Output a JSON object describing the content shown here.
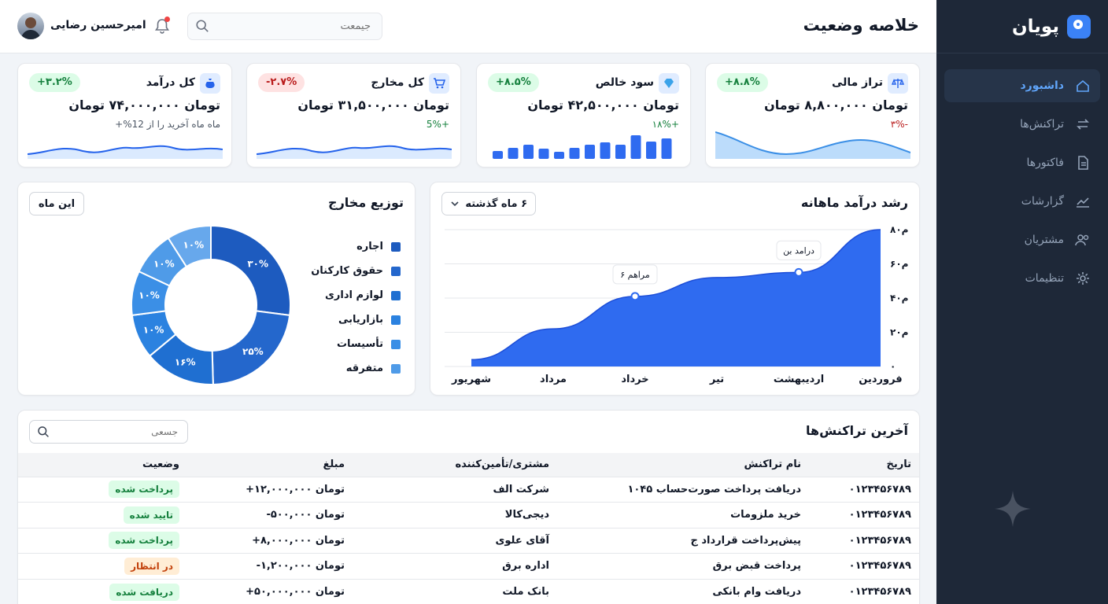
{
  "brand": {
    "name": "پویان"
  },
  "sidebar": {
    "items": [
      {
        "label": "داشبورد",
        "icon": "home-icon",
        "active": true
      },
      {
        "label": "تراکنش‌ها",
        "icon": "arrows-swap-icon",
        "active": false
      },
      {
        "label": "فاکتورها",
        "icon": "document-icon",
        "active": false
      },
      {
        "label": "گزارشات",
        "icon": "chart-line-icon",
        "active": false
      },
      {
        "label": "مشتریان",
        "icon": "users-icon",
        "active": false
      },
      {
        "label": "تنظیمات",
        "icon": "gear-icon",
        "active": false
      }
    ]
  },
  "header": {
    "title": "خلاصه وضعیت",
    "search_placeholder": "جیمعت",
    "user_name": "امیرحسین رضایی"
  },
  "kpis": [
    {
      "title": "تراز مالی",
      "icon": "scale-icon",
      "value": "تومان ۸,۸۰۰,۰۰۰ تومان",
      "badge": "+۸.۸%",
      "badge_dir": "up",
      "sub": "-۳%",
      "sub_color": "#b91c1c",
      "spark": "area"
    },
    {
      "title": "سود خالص",
      "icon": "diamond-icon",
      "value": "تومان ۴۲,۵۰۰,۰۰۰ تومان",
      "badge": "+۸.۵%",
      "badge_dir": "up",
      "sub": "+۱۸%",
      "sub_color": "#15803d",
      "spark": "bars"
    },
    {
      "title": "کل مخارج",
      "icon": "cart-icon",
      "value": "تومان ۳۱,۵۰۰,۰۰۰ تومان",
      "badge": "-۲.۷%",
      "badge_dir": "down",
      "sub": "+5%",
      "sub_color": "#15803d",
      "spark": "line"
    },
    {
      "title": "کل درآمد",
      "icon": "money-bag-icon",
      "value": "تومان ۷۴,۰۰۰,۰۰۰ تومان",
      "badge": "+۳.۲%",
      "badge_dir": "up",
      "sub": "ماه ماه آخرید را از 12%+",
      "sub_color": "#4b5563",
      "spark": "line"
    }
  ],
  "revenue": {
    "title": "رشد درآمد ماهانه",
    "period": "۶ ماه گذشته"
  },
  "expenses": {
    "title": "توزیع مخارج",
    "period_button": "این ماه"
  },
  "chart_data": [
    {
      "type": "area",
      "title": "رشد درآمد ماهانه",
      "categories": [
        "فروردین",
        "اردیبهشت",
        "تیر",
        "خرداد",
        "مرداد",
        "شهریور"
      ],
      "values": [
        80,
        55,
        52,
        41,
        22,
        4
      ],
      "y_tick_labels": [
        "۰",
        "۲۰م",
        "۴۰م",
        "۶۰م",
        "۸۰م"
      ],
      "y_tick_values": [
        0,
        20,
        40,
        60,
        80
      ],
      "ylim": [
        0,
        80
      ],
      "color": "#2f6bf0",
      "annotations": [
        {
          "label": "درامد بن",
          "category": "اردیبهشت"
        },
        {
          "label": "۶ مراهم",
          "category": "خرداد"
        }
      ],
      "grid": true
    },
    {
      "type": "pie",
      "title": "توزیع مخارج",
      "slices": [
        {
          "label": "اجاره",
          "value": 30,
          "text": "۳۰%",
          "color": "#1d5bbf"
        },
        {
          "label": "حقوق کارکنان",
          "value": 25,
          "text": "۲۵%",
          "color": "#2467cc"
        },
        {
          "label": "لوازم اداری",
          "value": 16,
          "text": "۱۶%",
          "color": "#1f6fd1"
        },
        {
          "label": "بازاریابی",
          "value": 10,
          "text": "۱۰%",
          "color": "#2b82e0"
        },
        {
          "label": "تأسیسات",
          "value": 10,
          "text": "۱۰%",
          "color": "#3b8fe6"
        },
        {
          "label": "متفرقه",
          "value": 10,
          "text": "۱۰%",
          "color": "#4f9be8"
        },
        {
          "label": "",
          "value": 10,
          "text": "۱۰%",
          "color": "#67a8ec"
        }
      ],
      "donut": true
    }
  ],
  "transactions": {
    "title": "آخرین تراکنش‌ها",
    "search_placeholder": "جسعی",
    "columns": [
      "تاریخ",
      "نام تراکنش",
      "مشتری/تأمین‌کننده",
      "مبلغ",
      "وضعیت"
    ],
    "rows": [
      {
        "date": "۰۱۲۳۴۵۶۷۸۹",
        "name": "دریافت پرداخت صورت‌حساب ۱۰۴۵",
        "party": "شرکت الف",
        "amount": "تومان ۱۲,۰۰۰,۰۰۰+",
        "amount_sign": "pos",
        "status": "پرداخت شده",
        "status_type": "paid"
      },
      {
        "date": "۰۱۲۳۴۵۶۷۸۹",
        "name": "خرید ملزومات",
        "party": "دیجی‌کالا",
        "amount": "تومان ۵۰۰,۰۰۰-",
        "amount_sign": "neg",
        "status": "تایید شده",
        "status_type": "paid"
      },
      {
        "date": "۰۱۲۳۴۵۶۷۸۹",
        "name": "پیش‌پرداخت قرارداد ج",
        "party": "آقای علوی",
        "amount": "تومان ۸,۰۰۰,۰۰۰+",
        "amount_sign": "pos",
        "status": "پرداخت شده",
        "status_type": "paid"
      },
      {
        "date": "۰۱۲۳۴۵۶۷۸۹",
        "name": "پرداخت قبض برق",
        "party": "اداره برق",
        "amount": "تومان ۱,۲۰۰,۰۰۰-",
        "amount_sign": "neg",
        "status": "در انتظار",
        "status_type": "pending"
      },
      {
        "date": "۰۱۲۳۴۵۶۷۸۹",
        "name": "دریافت وام بانکی",
        "party": "بانک ملت",
        "amount": "تومان ۵۰,۰۰۰,۰۰۰+",
        "amount_sign": "pos",
        "status": "دریافت شده",
        "status_type": "paid"
      }
    ]
  }
}
